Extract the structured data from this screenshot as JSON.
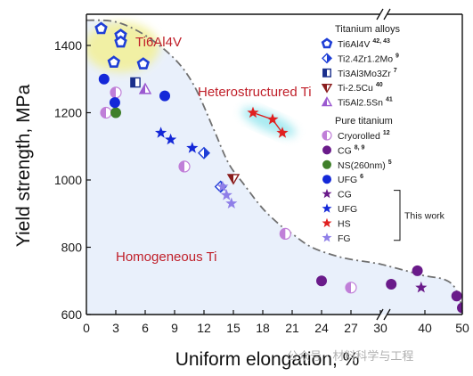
{
  "chart_data": {
    "type": "scatter",
    "title": "",
    "xlabel": "Uniform  elongation, %",
    "ylabel": "Yield strength, MPa",
    "ylim": [
      600,
      1480
    ],
    "x_axis_broken": true,
    "x_segments": [
      [
        0,
        30
      ],
      [
        30,
        50
      ]
    ],
    "xticks": [
      0,
      3,
      6,
      9,
      12,
      15,
      18,
      21,
      24,
      27,
      30,
      40,
      50
    ],
    "yticks": [
      600,
      800,
      1000,
      1200,
      1400
    ],
    "grid": false,
    "legend_position": "right",
    "regions": [
      {
        "label": "Ti6Al4V",
        "color": "#f2f0a0"
      },
      {
        "label": "Heterostructured Ti",
        "color": "#9fe8f0"
      },
      {
        "label": "Homogeneous Ti",
        "color": "#e9f0fb"
      }
    ],
    "boundary_curve": [
      [
        0,
        1475
      ],
      [
        3,
        1470
      ],
      [
        6,
        1430
      ],
      [
        9,
        1360
      ],
      [
        11,
        1280
      ],
      [
        13,
        1150
      ],
      [
        14.5,
        1050
      ],
      [
        16,
        990
      ],
      [
        18,
        915
      ],
      [
        20,
        860
      ],
      [
        21,
        840
      ],
      [
        23,
        800
      ],
      [
        26,
        770
      ],
      [
        29,
        755
      ],
      [
        30,
        750
      ],
      [
        35,
        730
      ],
      [
        40,
        715
      ],
      [
        45,
        705
      ],
      [
        48,
        680
      ],
      [
        50,
        620
      ]
    ],
    "legend_groups": [
      {
        "heading": "Titanium alloys",
        "items": [
          {
            "label": "Ti6Al4V",
            "ref": "42, 43",
            "marker": "pentagon",
            "color": "#1f3fd6"
          },
          {
            "label": "Ti2.4Zr1.2Mo",
            "ref": "9",
            "marker": "diamond-half",
            "color": "#1f3fd6"
          },
          {
            "label": "Ti3Al3Mo3Zr",
            "ref": "7",
            "marker": "square-half",
            "color": "#1a2f8c"
          },
          {
            "label": "Ti-2.5Cu",
            "ref": "40",
            "marker": "triangle-down",
            "color": "#8a1c1c"
          },
          {
            "label": "Ti5Al2.5Sn",
            "ref": "41",
            "marker": "triangle-up-half",
            "color": "#9b59d0"
          }
        ]
      },
      {
        "heading": "Pure titanium",
        "items": [
          {
            "label": "Cryorolled",
            "ref": "12",
            "marker": "circle-half",
            "color": "#c07fd8"
          },
          {
            "label": "CG",
            "ref": "8, 9",
            "marker": "circle",
            "color": "#6a1b8a"
          },
          {
            "label": "NS(260nm)",
            "ref": "5",
            "marker": "circle",
            "color": "#3f7f2a"
          },
          {
            "label": "UFG",
            "ref": "6",
            "marker": "circle",
            "color": "#1428d8"
          },
          {
            "label": "CG",
            "ref": "",
            "marker": "star",
            "color": "#6a1b8a"
          },
          {
            "label": "UFG",
            "ref": "",
            "marker": "star",
            "color": "#1428d8"
          },
          {
            "label": "HS",
            "ref": "",
            "marker": "star",
            "color": "#e02020"
          },
          {
            "label": "FG",
            "ref": "",
            "marker": "star",
            "color": "#8f7fe8"
          }
        ]
      }
    ],
    "this_work_label": "This work",
    "series": [
      {
        "name": "Ti6Al4V",
        "marker": "pentagon",
        "color": "#1f3fd6",
        "points": [
          [
            1.5,
            1450
          ],
          [
            3.5,
            1430
          ],
          [
            3.5,
            1410
          ],
          [
            2.8,
            1350
          ],
          [
            5.8,
            1345
          ]
        ]
      },
      {
        "name": "Ti2.4Zr1.2Mo",
        "marker": "diamond-half",
        "color": "#1f3fd6",
        "points": [
          [
            12,
            1080
          ],
          [
            13.7,
            980
          ]
        ]
      },
      {
        "name": "Ti3Al3Mo3Zr",
        "marker": "square-half",
        "color": "#1a2f8c",
        "points": [
          [
            5,
            1290
          ]
        ]
      },
      {
        "name": "Ti-2.5Cu",
        "marker": "triangle-down",
        "color": "#8a1c1c",
        "points": [
          [
            15,
            1005
          ]
        ]
      },
      {
        "name": "Ti5Al2.5Sn",
        "marker": "triangle-up-half",
        "color": "#9b59d0",
        "points": [
          [
            6,
            1270
          ]
        ]
      },
      {
        "name": "Cryorolled",
        "marker": "circle-half",
        "color": "#c07fd8",
        "points": [
          [
            2,
            1200
          ],
          [
            3,
            1260
          ],
          [
            10,
            1040
          ],
          [
            20.3,
            840
          ],
          [
            27,
            680
          ]
        ]
      },
      {
        "name": "CG",
        "marker": "circle",
        "color": "#6a1b8a",
        "points": [
          [
            24,
            700
          ],
          [
            31,
            690
          ],
          [
            38,
            730
          ],
          [
            48.5,
            655
          ],
          [
            50,
            620
          ]
        ]
      },
      {
        "name": "NS(260nm)",
        "marker": "circle",
        "color": "#3f7f2a",
        "points": [
          [
            3,
            1200
          ]
        ]
      },
      {
        "name": "UFG",
        "marker": "circle",
        "color": "#1428d8",
        "points": [
          [
            1.8,
            1300
          ],
          [
            2.9,
            1230
          ],
          [
            8,
            1250
          ]
        ]
      },
      {
        "name": "CG",
        "marker": "star",
        "color": "#6a1b8a",
        "points": [
          [
            39,
            680
          ]
        ]
      },
      {
        "name": "UFG",
        "marker": "star",
        "color": "#1428d8",
        "points": [
          [
            7.6,
            1140
          ],
          [
            8.6,
            1120
          ],
          [
            10.8,
            1095
          ]
        ]
      },
      {
        "name": "HS",
        "marker": "star",
        "color": "#e02020",
        "points": [
          [
            17,
            1200
          ],
          [
            19,
            1180
          ],
          [
            20,
            1140
          ]
        ]
      },
      {
        "name": "FG",
        "marker": "star",
        "color": "#8f7fe8",
        "points": [
          [
            13.9,
            980
          ],
          [
            14.3,
            955
          ],
          [
            14.8,
            930
          ]
        ]
      }
    ]
  },
  "watermark": "公众号 · 材料科学与工程"
}
